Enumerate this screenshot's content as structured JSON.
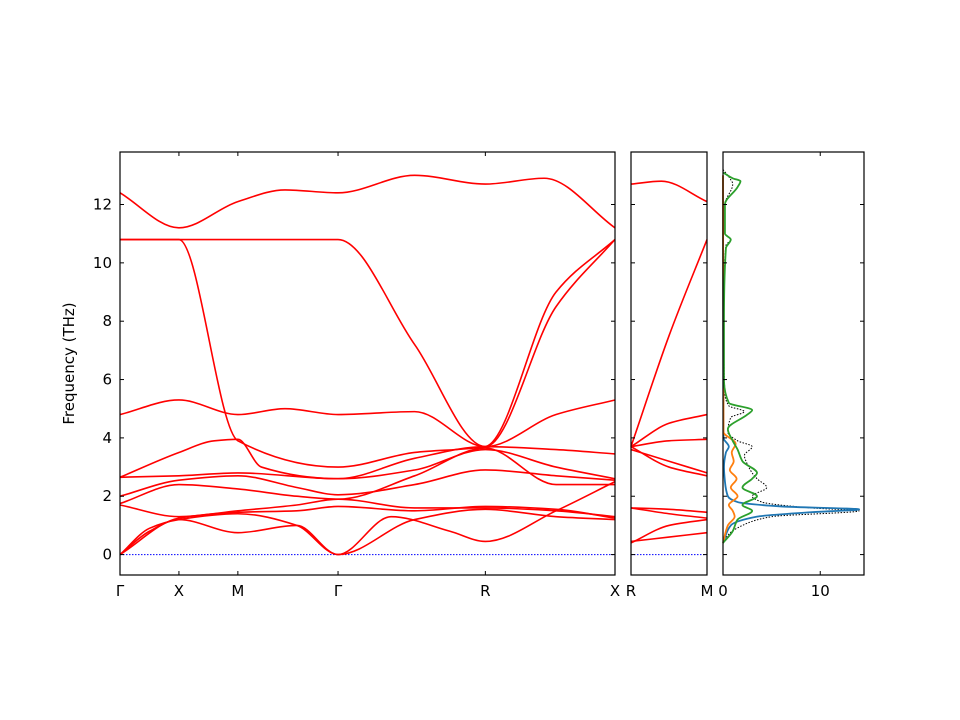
{
  "chart_data": [
    {
      "type": "line",
      "name": "band-structure",
      "ylabel": "Frequency (THz)",
      "ylim": [
        -0.7,
        13.8
      ],
      "yticks": [
        0,
        2,
        4,
        6,
        8,
        10,
        12
      ],
      "zero_line_color": "#0000ff",
      "band_color": "#ff0000",
      "segments": [
        {
          "labels": [
            "Γ",
            "X",
            "M",
            "Γ",
            "R",
            "X"
          ],
          "label_x": [
            0,
            0.5,
            1.0,
            1.85,
            3.1,
            4.2
          ],
          "bands": [
            {
              "x": [
                0,
                0.5,
                1.0,
                1.4,
                1.85,
                2.5,
                3.1,
                3.6,
                4.2
              ],
              "values": [
                12.4,
                11.2,
                12.1,
                12.5,
                12.4,
                13.0,
                12.7,
                12.9,
                11.2
              ]
            },
            {
              "x": [
                0,
                0.5,
                1.0,
                1.4,
                1.85,
                2.5,
                3.1,
                3.7,
                4.2
              ],
              "values": [
                10.8,
                10.8,
                10.8,
                10.8,
                10.8,
                7.2,
                3.7,
                8.5,
                10.8
              ]
            },
            {
              "x": [
                0,
                0.5,
                1.0,
                1.85,
                2.5,
                3.1,
                3.7,
                4.2
              ],
              "values": [
                10.8,
                10.8,
                3.9,
                3.0,
                3.5,
                3.7,
                9.0,
                10.8
              ]
            },
            {
              "x": [
                0,
                0.5,
                1.0,
                1.4,
                1.85,
                2.5,
                3.1,
                3.7,
                4.2
              ],
              "values": [
                4.8,
                5.3,
                4.8,
                5.0,
                4.8,
                4.9,
                3.7,
                4.8,
                5.3
              ]
            },
            {
              "x": [
                0,
                0.5,
                0.8,
                1.0,
                1.2,
                1.85,
                2.5,
                3.1,
                3.7,
                4.2
              ],
              "values": [
                2.65,
                3.5,
                3.9,
                3.95,
                3.0,
                2.6,
                3.3,
                3.7,
                3.6,
                3.45
              ]
            },
            {
              "x": [
                0,
                0.5,
                1.0,
                1.85,
                2.5,
                3.1,
                3.7,
                4.2
              ],
              "values": [
                2.65,
                2.7,
                2.8,
                2.6,
                2.9,
                3.6,
                3.0,
                2.6
              ]
            },
            {
              "x": [
                0,
                0.5,
                1.0,
                1.5,
                1.85,
                2.5,
                3.1,
                3.7,
                4.2
              ],
              "values": [
                2.0,
                2.55,
                2.7,
                2.3,
                2.05,
                2.4,
                2.9,
                2.7,
                2.55
              ]
            },
            {
              "x": [
                0,
                0.5,
                1.0,
                1.5,
                1.85,
                2.5,
                3.1,
                3.7,
                4.2
              ],
              "values": [
                1.75,
                2.4,
                2.25,
                2.0,
                1.9,
                2.7,
                3.65,
                2.4,
                2.4
              ]
            },
            {
              "x": [
                0,
                0.5,
                1.0,
                1.5,
                1.85,
                2.5,
                3.1,
                3.7,
                4.2
              ],
              "values": [
                1.7,
                1.3,
                1.5,
                1.7,
                1.9,
                1.6,
                1.6,
                1.5,
                1.3
              ]
            },
            {
              "x": [
                0,
                0.5,
                1.0,
                1.5,
                1.85,
                2.5,
                3.1,
                3.7,
                4.2
              ],
              "values": [
                0.0,
                1.25,
                1.45,
                1.5,
                1.65,
                1.5,
                1.65,
                1.55,
                1.25
              ]
            },
            {
              "x": [
                0,
                0.25,
                0.5,
                1.0,
                1.5,
                1.85,
                2.5,
                3.1,
                3.7,
                4.2
              ],
              "values": [
                0.0,
                0.9,
                1.2,
                1.4,
                1.0,
                0.0,
                1.2,
                1.55,
                1.3,
                1.2
              ]
            },
            {
              "x": [
                0,
                0.25,
                0.5,
                1.0,
                1.5,
                1.85,
                2.3,
                2.8,
                3.1,
                3.7,
                4.2
              ],
              "values": [
                0.0,
                0.8,
                1.2,
                0.75,
                1.0,
                0.0,
                1.3,
                0.8,
                0.45,
                1.5,
                2.5
              ]
            }
          ]
        },
        {
          "labels": [
            "R",
            "M"
          ],
          "label_x": [
            0,
            1
          ],
          "bands": [
            {
              "x": [
                0,
                0.4,
                1
              ],
              "values": [
                12.7,
                12.8,
                12.1
              ]
            },
            {
              "x": [
                0,
                0.5,
                1
              ],
              "values": [
                3.7,
                7.5,
                10.8
              ]
            },
            {
              "x": [
                0,
                0.5,
                1
              ],
              "values": [
                3.7,
                4.5,
                4.8
              ]
            },
            {
              "x": [
                0,
                0.5,
                1
              ],
              "values": [
                3.7,
                3.9,
                3.95
              ]
            },
            {
              "x": [
                0,
                0.5,
                1
              ],
              "values": [
                3.6,
                3.2,
                2.8
              ]
            },
            {
              "x": [
                0,
                0.5,
                1
              ],
              "values": [
                3.7,
                3.0,
                2.7
              ]
            },
            {
              "x": [
                0,
                0.5,
                1
              ],
              "values": [
                1.6,
                1.55,
                1.45
              ]
            },
            {
              "x": [
                0,
                0.5,
                1
              ],
              "values": [
                1.6,
                1.4,
                1.25
              ]
            },
            {
              "x": [
                0,
                0.5,
                1
              ],
              "values": [
                0.4,
                1.0,
                1.2
              ]
            },
            {
              "x": [
                0,
                0.5,
                1
              ],
              "values": [
                0.45,
                0.6,
                0.75
              ]
            }
          ]
        }
      ]
    },
    {
      "type": "line",
      "name": "density-of-states",
      "xticks": [
        0,
        10
      ],
      "xlim": [
        0,
        14.5
      ],
      "ylim": [
        -0.7,
        13.8
      ],
      "series": [
        {
          "color": "#000000",
          "style": "dotted",
          "y": [
            0.4,
            0.7,
            1.0,
            1.3,
            1.5,
            1.6,
            1.8,
            2.0,
            2.3,
            2.6,
            2.8,
            3.1,
            3.4,
            3.7,
            3.9,
            4.2,
            4.7,
            4.9,
            5.1,
            5.5,
            7.0,
            9.0,
            10.6,
            10.8,
            11.0,
            12.0,
            12.7,
            12.9,
            13.2
          ],
          "values": [
            0,
            0.6,
            2.0,
            5.0,
            14.0,
            9.0,
            4.0,
            3.0,
            4.5,
            3.5,
            3.0,
            2.5,
            2.2,
            3.0,
            1.5,
            0.5,
            0.8,
            2.2,
            0.6,
            0.2,
            0.1,
            0.1,
            0.3,
            0.8,
            0.2,
            0.2,
            1.0,
            0.7,
            0
          ]
        },
        {
          "color": "#1f77b4",
          "style": "solid",
          "y": [
            0.4,
            1.0,
            1.3,
            1.45,
            1.55,
            1.65,
            1.8,
            2.0,
            2.5,
            3.0,
            3.5,
            3.7,
            4.0,
            13.0
          ],
          "values": [
            0,
            0.8,
            3.5,
            9.0,
            14.0,
            6.0,
            1.5,
            0.5,
            0.2,
            0.1,
            0.3,
            0.6,
            0.05,
            0
          ]
        },
        {
          "color": "#ff7f0e",
          "style": "solid",
          "y": [
            0.4,
            1.0,
            1.3,
            1.5,
            1.7,
            2.0,
            2.3,
            2.6,
            2.9,
            3.2,
            3.5,
            3.8,
            4.2,
            13.0
          ],
          "values": [
            0,
            0.5,
            1.2,
            1.0,
            0.6,
            1.5,
            0.8,
            1.4,
            0.7,
            1.1,
            0.9,
            1.3,
            0.05,
            0
          ]
        },
        {
          "color": "#2ca02c",
          "style": "solid",
          "y": [
            0.4,
            0.8,
            1.2,
            1.5,
            1.7,
            2.0,
            2.3,
            2.6,
            2.8,
            3.2,
            3.6,
            3.9,
            4.3,
            4.8,
            4.95,
            5.2,
            6.0,
            8.0,
            10.5,
            10.8,
            11.0,
            12.0,
            12.6,
            12.8,
            12.9,
            13.1
          ],
          "values": [
            0,
            1.0,
            1.5,
            3.0,
            2.0,
            3.5,
            2.0,
            3.0,
            3.5,
            2.0,
            1.5,
            1.0,
            0.5,
            2.5,
            3.0,
            0.6,
            0.1,
            0.1,
            0.3,
            0.8,
            0.2,
            0.2,
            1.5,
            1.8,
            1.0,
            0
          ]
        }
      ]
    }
  ]
}
